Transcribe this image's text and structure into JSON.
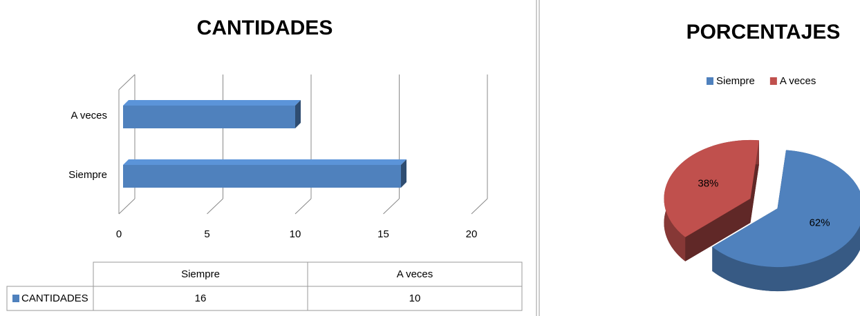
{
  "chart_data": [
    {
      "type": "bar",
      "title": "CANTIDADES",
      "categories": [
        "Siempre",
        "A veces"
      ],
      "series": [
        {
          "name": "CANTIDADES",
          "color": "#4f81bd",
          "values": [
            16,
            10
          ]
        }
      ],
      "xlim": [
        0,
        20
      ],
      "xticks": [
        0,
        5,
        10,
        15,
        20
      ],
      "grid": true,
      "data_table": true
    },
    {
      "type": "pie",
      "title": "PORCENTAJES",
      "categories": [
        "Siempre",
        "A veces"
      ],
      "values": [
        62,
        38
      ],
      "value_labels": [
        "62%",
        "38%"
      ],
      "colors": [
        "#4f81bd",
        "#c0504d"
      ],
      "legend": "top"
    }
  ]
}
